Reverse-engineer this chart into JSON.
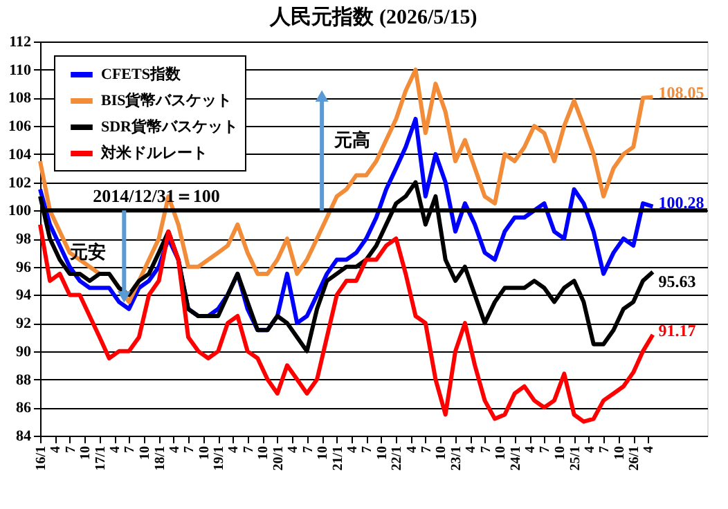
{
  "chart_data": {
    "type": "line",
    "title": "人民元指数  (2026/5/15)",
    "x": [
      "2016-01",
      "2016-03",
      "2016-05",
      "2016-07",
      "2016-09",
      "2016-11",
      "2017-01",
      "2017-03",
      "2017-05",
      "2017-07",
      "2017-09",
      "2017-11",
      "2018-01",
      "2018-03",
      "2018-05",
      "2018-07",
      "2018-09",
      "2018-11",
      "2019-01",
      "2019-03",
      "2019-05",
      "2019-07",
      "2019-09",
      "2019-11",
      "2020-01",
      "2020-03",
      "2020-05",
      "2020-07",
      "2020-09",
      "2020-11",
      "2021-01",
      "2021-03",
      "2021-05",
      "2021-07",
      "2021-09",
      "2021-11",
      "2022-01",
      "2022-03",
      "2022-05",
      "2022-07",
      "2022-09",
      "2022-11",
      "2023-01",
      "2023-03",
      "2023-05",
      "2023-07",
      "2023-09",
      "2023-11",
      "2024-01",
      "2024-03",
      "2024-05",
      "2024-07",
      "2024-09",
      "2024-11",
      "2025-01",
      "2025-03",
      "2025-05",
      "2025-07",
      "2025-09",
      "2025-11",
      "2026-01",
      "2026-03",
      "2026-05"
    ],
    "series": [
      {
        "name": "CFETS指数",
        "color": "#0000ff",
        "values": [
          101.5,
          99,
          97.5,
          96,
          95,
          94.5,
          94.5,
          94.5,
          93.5,
          93,
          94.5,
          95,
          96,
          98,
          96.5,
          93,
          92.5,
          92.5,
          93,
          94,
          95.5,
          93,
          91.5,
          91.5,
          92.5,
          95.5,
          92,
          92.5,
          94,
          95.5,
          96.5,
          96.5,
          97,
          98,
          99.5,
          101.5,
          103,
          104.5,
          106.5,
          101,
          104,
          102,
          98.5,
          100.5,
          99,
          97,
          96.5,
          98.5,
          99.5,
          99.5,
          100,
          100.5,
          98.5,
          98,
          101.5,
          100.5,
          98.5,
          95.5,
          97,
          98,
          97.5,
          100.5,
          100.28
        ],
        "value_labels": [
          null,
          null,
          null,
          null,
          null,
          null,
          null,
          null,
          null,
          null,
          null,
          null,
          null,
          null,
          null,
          null,
          null,
          null,
          null,
          null,
          null,
          null,
          null,
          null,
          null,
          null,
          null,
          null,
          null,
          null,
          null,
          null,
          null,
          null,
          null,
          null,
          null,
          null,
          null,
          null,
          null,
          null,
          null,
          null,
          null,
          null,
          null,
          null,
          null,
          null,
          null,
          null,
          null,
          null,
          null,
          null,
          null,
          null,
          null,
          null,
          null,
          null,
          "100.28"
        ]
      },
      {
        "name": "BIS貨幣バスケット",
        "color": "#f28c38",
        "values": [
          103.5,
          100,
          98.5,
          97,
          96.5,
          96,
          95.5,
          95.5,
          94.5,
          93.5,
          95,
          96.5,
          98,
          101,
          99,
          96,
          96,
          96.5,
          97,
          97.5,
          99,
          97,
          95.5,
          95.5,
          96.5,
          98,
          95.5,
          96.5,
          98,
          99.5,
          101,
          101.5,
          102.5,
          102.5,
          103.5,
          105,
          106.5,
          108.5,
          110,
          105.5,
          109,
          107,
          103.5,
          105,
          103,
          101,
          100.5,
          104,
          103.5,
          104.5,
          106,
          105.5,
          103.5,
          106,
          107.8,
          106,
          104,
          101,
          103,
          104,
          104.5,
          108,
          108.05
        ],
        "value_labels": [
          null,
          null,
          null,
          null,
          null,
          null,
          null,
          null,
          null,
          null,
          null,
          null,
          null,
          null,
          null,
          null,
          null,
          null,
          null,
          null,
          null,
          null,
          null,
          null,
          null,
          null,
          null,
          null,
          null,
          null,
          null,
          null,
          null,
          null,
          null,
          null,
          null,
          null,
          null,
          null,
          null,
          null,
          null,
          null,
          null,
          null,
          null,
          null,
          null,
          null,
          null,
          null,
          null,
          null,
          null,
          null,
          null,
          null,
          null,
          null,
          null,
          null,
          "108.05"
        ]
      },
      {
        "name": "SDR貨幣バスケット",
        "color": "#000000",
        "values": [
          101,
          98,
          96.5,
          95.5,
          95.5,
          95,
          95.5,
          95.5,
          94.5,
          94,
          95,
          95.5,
          97,
          98.5,
          96.5,
          93,
          92.5,
          92.5,
          92.5,
          94,
          95.5,
          93.5,
          91.5,
          91.5,
          92.5,
          92,
          91,
          90,
          93,
          95,
          95.5,
          96,
          96,
          96.5,
          97.5,
          99,
          100.5,
          101,
          102,
          99,
          101,
          96.5,
          95,
          96,
          94,
          92,
          93.5,
          94.5,
          94.5,
          94.5,
          95,
          94.5,
          93.5,
          94.5,
          95,
          93.5,
          90.5,
          90.5,
          91.5,
          93,
          93.5,
          95,
          95.63
        ],
        "value_labels": [
          null,
          null,
          null,
          null,
          null,
          null,
          null,
          null,
          null,
          null,
          null,
          null,
          null,
          null,
          null,
          null,
          null,
          null,
          null,
          null,
          null,
          null,
          null,
          null,
          null,
          null,
          null,
          null,
          null,
          null,
          null,
          null,
          null,
          null,
          null,
          null,
          null,
          null,
          null,
          null,
          null,
          null,
          null,
          null,
          null,
          null,
          null,
          null,
          null,
          null,
          null,
          null,
          null,
          null,
          null,
          null,
          null,
          null,
          null,
          null,
          null,
          null,
          "95.63"
        ]
      },
      {
        "name": "対米ドルレート",
        "color": "#ff0000",
        "values": [
          99,
          95,
          95.5,
          94,
          94,
          92.5,
          91,
          89.5,
          90,
          90,
          91,
          94,
          95,
          98.5,
          96.5,
          91,
          90,
          89.5,
          90,
          92,
          92.5,
          90,
          89.5,
          88,
          87,
          89,
          88,
          87,
          88,
          91,
          94,
          95,
          95,
          96.5,
          96.5,
          97.5,
          98,
          95.5,
          92.5,
          92,
          88,
          85.5,
          90,
          92,
          89,
          86.5,
          85.2,
          85.5,
          87,
          87.5,
          86.5,
          86,
          86.5,
          88.4,
          85.5,
          85,
          85.2,
          86.5,
          87,
          87.5,
          88.5,
          90,
          91.17
        ],
        "value_labels": [
          null,
          null,
          null,
          null,
          null,
          null,
          null,
          null,
          null,
          null,
          null,
          null,
          null,
          null,
          null,
          null,
          null,
          null,
          null,
          null,
          null,
          null,
          null,
          null,
          null,
          null,
          null,
          null,
          null,
          null,
          null,
          null,
          null,
          null,
          null,
          null,
          null,
          null,
          null,
          null,
          null,
          null,
          null,
          null,
          null,
          null,
          null,
          null,
          null,
          null,
          null,
          null,
          null,
          null,
          null,
          null,
          null,
          null,
          null,
          null,
          null,
          null,
          "91.17"
        ]
      }
    ],
    "xlim": [
      "2016-01",
      "2027-04"
    ],
    "xticks": [
      {
        "value": "2016-01",
        "label": "16/1"
      },
      {
        "value": "2016-04",
        "label": "4"
      },
      {
        "value": "2016-07",
        "label": "7"
      },
      {
        "value": "2016-10",
        "label": "10"
      },
      {
        "value": "2017-01",
        "label": "17/1"
      },
      {
        "value": "2017-04",
        "label": "4"
      },
      {
        "value": "2017-07",
        "label": "7"
      },
      {
        "value": "2017-10",
        "label": "10"
      },
      {
        "value": "2018-01",
        "label": "18/1"
      },
      {
        "value": "2018-04",
        "label": "4"
      },
      {
        "value": "2018-07",
        "label": "7"
      },
      {
        "value": "2018-10",
        "label": "10"
      },
      {
        "value": "2019-01",
        "label": "19/1"
      },
      {
        "value": "2019-04",
        "label": "4"
      },
      {
        "value": "2019-07",
        "label": "7"
      },
      {
        "value": "2019-10",
        "label": "10"
      },
      {
        "value": "2020-01",
        "label": "20/1"
      },
      {
        "value": "2020-04",
        "label": "4"
      },
      {
        "value": "2020-07",
        "label": "7"
      },
      {
        "value": "2020-10",
        "label": "10"
      },
      {
        "value": "2021-01",
        "label": "21/1"
      },
      {
        "value": "2021-04",
        "label": "4"
      },
      {
        "value": "2021-07",
        "label": "7"
      },
      {
        "value": "2021-10",
        "label": "10"
      },
      {
        "value": "2022-01",
        "label": "22/1"
      },
      {
        "value": "2022-04",
        "label": "4"
      },
      {
        "value": "2022-07",
        "label": "7"
      },
      {
        "value": "2022-10",
        "label": "10"
      },
      {
        "value": "2023-01",
        "label": "23/1"
      },
      {
        "value": "2023-04",
        "label": "4"
      },
      {
        "value": "2023-07",
        "label": "7"
      },
      {
        "value": "2023-10",
        "label": "10"
      },
      {
        "value": "2024-01",
        "label": "24/1"
      },
      {
        "value": "2024-04",
        "label": "4"
      },
      {
        "value": "2024-07",
        "label": "7"
      },
      {
        "value": "2024-10",
        "label": "10"
      },
      {
        "value": "2025-01",
        "label": "25/1"
      },
      {
        "value": "2025-04",
        "label": "4"
      },
      {
        "value": "2025-07",
        "label": "7"
      },
      {
        "value": "2025-10",
        "label": "10"
      },
      {
        "value": "2026-01",
        "label": "26/1"
      },
      {
        "value": "2026-04",
        "label": "4"
      }
    ],
    "ylim": [
      84,
      112
    ],
    "yticks": [
      84,
      86,
      88,
      90,
      92,
      94,
      96,
      98,
      100,
      102,
      104,
      106,
      108,
      110,
      112
    ],
    "grid": "y",
    "legend": "top left",
    "line_style": "solid",
    "ref_lines": [
      {
        "axis": "y",
        "value": 100,
        "color": "#000000"
      }
    ],
    "annotations": [
      "2014/12/31＝100",
      {
        "text": "元安",
        "x": "2017-06",
        "y": 94
      },
      {
        "text": "元高",
        "x": "2020-10",
        "y": 108
      }
    ]
  }
}
